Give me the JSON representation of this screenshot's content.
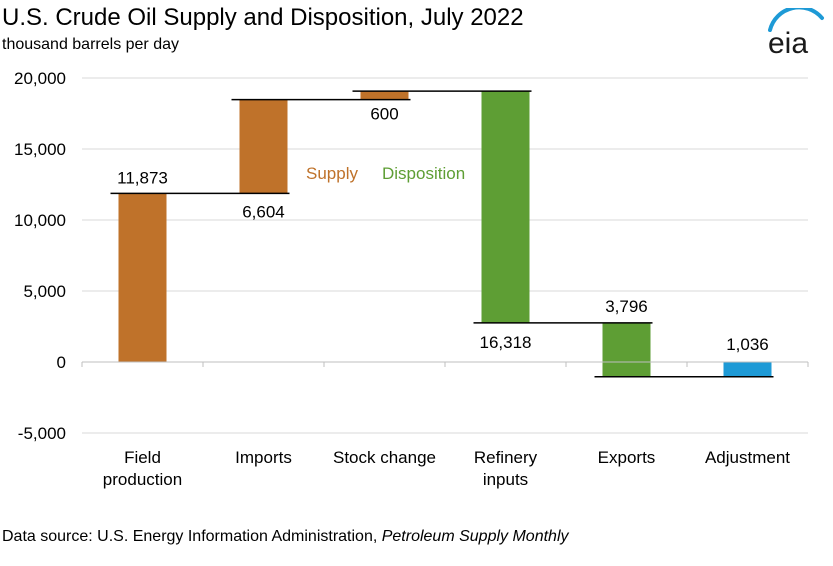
{
  "title": "U.S. Crude Oil Supply and Disposition, July 2022",
  "subtitle": "thousand barrels per day",
  "logo_text": "eia",
  "source": {
    "prefix": "Data source: U.S. Energy Information Administration, ",
    "publication": "Petroleum Supply Monthly"
  },
  "colors": {
    "supply": "#bf722a",
    "disposition": "#5e9e34",
    "adjustment": "#1e9ad6",
    "logo": "#1e9ad6"
  },
  "chart_data": {
    "type": "waterfall",
    "title": "U.S. Crude Oil Supply and Disposition, July 2022",
    "ylabel": "thousand barrels per day",
    "ylim": [
      -5000,
      20000
    ],
    "yticks": [
      -5000,
      0,
      5000,
      10000,
      15000,
      20000
    ],
    "ytick_labels": [
      "-5,000",
      "0",
      "5,000",
      "10,000",
      "15,000",
      "20,000"
    ],
    "categories": [
      "Field\nproduction",
      "Imports",
      "Stock change",
      "Refinery\ninputs",
      "Exports",
      "Adjustment"
    ],
    "bars": [
      {
        "category": "Field production",
        "low": 0,
        "high": 11873,
        "value": 11873,
        "label": "11,873",
        "group": "supply"
      },
      {
        "category": "Imports",
        "low": 11873,
        "high": 18477,
        "value": 6604,
        "label": "6,604",
        "group": "supply"
      },
      {
        "category": "Stock change",
        "low": 18477,
        "high": 19077,
        "value": 600,
        "label": "600",
        "group": "supply"
      },
      {
        "category": "Refinery inputs",
        "low": 2759,
        "high": 19077,
        "value": 16318,
        "label": "16,318",
        "group": "disposition"
      },
      {
        "category": "Exports",
        "low": -1037,
        "high": 2759,
        "value": 3796,
        "label": "3,796",
        "group": "disposition"
      },
      {
        "category": "Adjustment",
        "low": -1037,
        "high": 0,
        "value": 1036,
        "label": "1,036",
        "group": "adjustment"
      }
    ],
    "legend": {
      "supply": "Supply",
      "disposition": "Disposition"
    }
  }
}
